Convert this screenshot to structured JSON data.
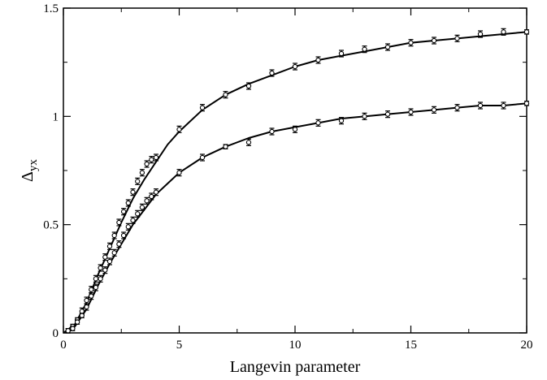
{
  "chart_data": {
    "type": "scatter",
    "title": "",
    "xlabel": "Langevin parameter",
    "ylabel": "Δ",
    "ylabel_sub": "yx",
    "xlim": [
      0,
      20
    ],
    "ylim": [
      0,
      1.5
    ],
    "x_ticks": [
      "0",
      "5",
      "10",
      "15",
      "20"
    ],
    "y_ticks": [
      "0",
      "0.5",
      "1",
      "1.5"
    ],
    "grid": false,
    "legend": "none",
    "marker": "circle",
    "error_bars": true,
    "series": [
      {
        "x": [
          0.2,
          0.4,
          0.6,
          0.8,
          1.0,
          1.2,
          1.4,
          1.6,
          1.8,
          2.0,
          2.2,
          2.4,
          2.6,
          2.8,
          3.0,
          3.2,
          3.4,
          3.6,
          3.8,
          4.0,
          5.0,
          6.0,
          7.0,
          8.0,
          9.0,
          10.0,
          11.0,
          12.0,
          13.0,
          14.0,
          15.0,
          16.0,
          17.0,
          18.0,
          19.0,
          20.0
        ],
        "y": [
          0.01,
          0.03,
          0.06,
          0.1,
          0.15,
          0.2,
          0.25,
          0.3,
          0.35,
          0.4,
          0.45,
          0.51,
          0.56,
          0.6,
          0.65,
          0.7,
          0.74,
          0.78,
          0.8,
          0.81,
          0.94,
          1.04,
          1.1,
          1.14,
          1.2,
          1.23,
          1.26,
          1.29,
          1.31,
          1.32,
          1.34,
          1.35,
          1.36,
          1.38,
          1.39,
          1.39
        ],
        "err": [
          0.01,
          0.01,
          0.01,
          0.015,
          0.015,
          0.015,
          0.015,
          0.015,
          0.015,
          0.015,
          0.015,
          0.015,
          0.015,
          0.015,
          0.015,
          0.015,
          0.015,
          0.015,
          0.015,
          0.015,
          0.015,
          0.015,
          0.015,
          0.015,
          0.015,
          0.015,
          0.015,
          0.015,
          0.015,
          0.015,
          0.015,
          0.015,
          0.015,
          0.015,
          0.015,
          0.01
        ],
        "fit": [
          [
            0,
            0
          ],
          [
            0.5,
            0.04
          ],
          [
            1.0,
            0.14
          ],
          [
            1.5,
            0.27
          ],
          [
            2.0,
            0.39
          ],
          [
            2.5,
            0.51
          ],
          [
            3.0,
            0.62
          ],
          [
            3.5,
            0.71
          ],
          [
            4.0,
            0.79
          ],
          [
            4.5,
            0.87
          ],
          [
            5.0,
            0.93
          ],
          [
            6.0,
            1.03
          ],
          [
            7.0,
            1.1
          ],
          [
            8.0,
            1.15
          ],
          [
            9.0,
            1.19
          ],
          [
            10.0,
            1.23
          ],
          [
            11.0,
            1.26
          ],
          [
            12.0,
            1.28
          ],
          [
            13.0,
            1.3
          ],
          [
            14.0,
            1.32
          ],
          [
            15.0,
            1.34
          ],
          [
            16.0,
            1.35
          ],
          [
            17.0,
            1.36
          ],
          [
            18.0,
            1.37
          ],
          [
            19.0,
            1.38
          ],
          [
            20.0,
            1.39
          ]
        ]
      },
      {
        "x": [
          0.2,
          0.4,
          0.6,
          0.8,
          1.0,
          1.2,
          1.4,
          1.6,
          1.8,
          2.0,
          2.2,
          2.4,
          2.6,
          2.8,
          3.0,
          3.2,
          3.4,
          3.6,
          3.8,
          4.0,
          5.0,
          6.0,
          7.0,
          8.0,
          9.0,
          10.0,
          11.0,
          12.0,
          13.0,
          14.0,
          15.0,
          16.0,
          17.0,
          18.0,
          19.0,
          20.0
        ],
        "y": [
          0.01,
          0.02,
          0.05,
          0.08,
          0.12,
          0.17,
          0.21,
          0.25,
          0.29,
          0.33,
          0.37,
          0.41,
          0.45,
          0.49,
          0.52,
          0.55,
          0.58,
          0.61,
          0.63,
          0.65,
          0.74,
          0.81,
          0.86,
          0.88,
          0.93,
          0.94,
          0.97,
          0.98,
          1.0,
          1.01,
          1.02,
          1.03,
          1.04,
          1.05,
          1.05,
          1.06
        ],
        "err": [
          0.01,
          0.01,
          0.01,
          0.01,
          0.015,
          0.015,
          0.015,
          0.015,
          0.015,
          0.015,
          0.015,
          0.015,
          0.015,
          0.015,
          0.015,
          0.015,
          0.015,
          0.015,
          0.015,
          0.015,
          0.015,
          0.015,
          0.01,
          0.015,
          0.015,
          0.015,
          0.015,
          0.015,
          0.015,
          0.015,
          0.015,
          0.015,
          0.015,
          0.015,
          0.015,
          0.01
        ],
        "fit": [
          [
            0,
            0
          ],
          [
            0.5,
            0.03
          ],
          [
            1.0,
            0.11
          ],
          [
            1.5,
            0.22
          ],
          [
            2.0,
            0.32
          ],
          [
            2.5,
            0.41
          ],
          [
            3.0,
            0.5
          ],
          [
            3.5,
            0.57
          ],
          [
            4.0,
            0.64
          ],
          [
            4.5,
            0.69
          ],
          [
            5.0,
            0.74
          ],
          [
            6.0,
            0.81
          ],
          [
            7.0,
            0.86
          ],
          [
            8.0,
            0.9
          ],
          [
            9.0,
            0.93
          ],
          [
            10.0,
            0.95
          ],
          [
            11.0,
            0.97
          ],
          [
            12.0,
            0.99
          ],
          [
            13.0,
            1.0
          ],
          [
            14.0,
            1.01
          ],
          [
            15.0,
            1.02
          ],
          [
            16.0,
            1.03
          ],
          [
            17.0,
            1.04
          ],
          [
            18.0,
            1.05
          ],
          [
            19.0,
            1.05
          ],
          [
            20.0,
            1.06
          ]
        ]
      }
    ]
  }
}
